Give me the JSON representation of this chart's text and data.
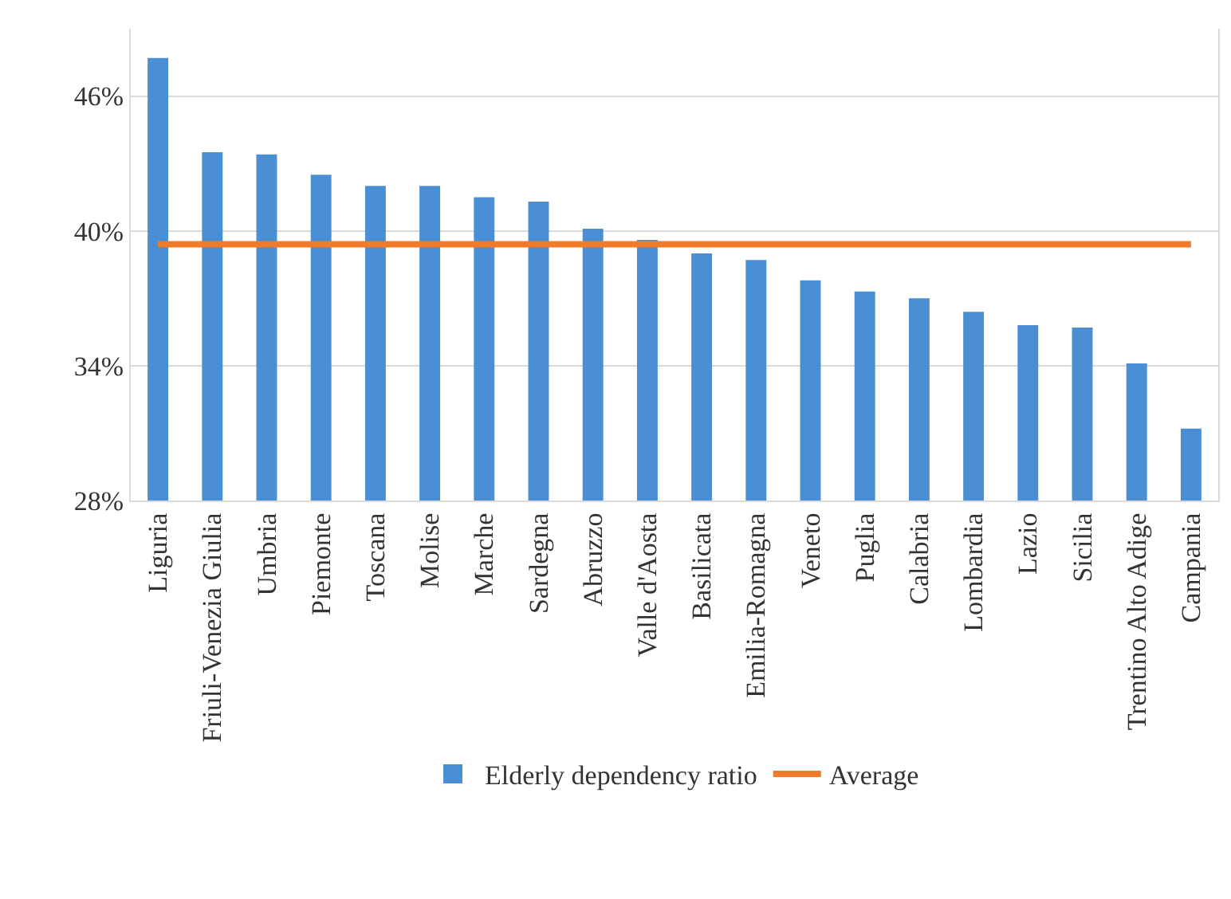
{
  "chart_data": {
    "type": "bar",
    "categories": [
      "Liguria",
      "Friuli-Venezia Giulia",
      "Umbria",
      "Piemonte",
      "Toscana",
      "Molise",
      "Marche",
      "Sardegna",
      "Abruzzo",
      "Valle d'Aosta",
      "Basilicata",
      "Emilia-Romagna",
      "Veneto",
      "Puglia",
      "Calabria",
      "Lombardia",
      "Lazio",
      "Sicilia",
      "Trentino Alto Adige",
      "Campania"
    ],
    "series": [
      {
        "name": "Elderly dependency ratio",
        "color": "#4a8fd4",
        "values": [
          47.7,
          43.5,
          43.4,
          42.5,
          42.0,
          42.0,
          41.5,
          41.3,
          40.1,
          39.6,
          39.0,
          38.7,
          37.8,
          37.3,
          37.0,
          36.4,
          35.8,
          35.7,
          34.1,
          31.2
        ]
      },
      {
        "name": "Average",
        "type": "line",
        "color": "#f07b2a",
        "values": [
          39.4,
          39.4,
          39.4,
          39.4,
          39.4,
          39.4,
          39.4,
          39.4,
          39.4,
          39.4,
          39.4,
          39.4,
          39.4,
          39.4,
          39.4,
          39.4,
          39.4,
          39.4,
          39.4,
          39.4
        ]
      }
    ],
    "ylim": [
      28,
      49
    ],
    "yticks": [
      {
        "value": 28,
        "label": "28%"
      },
      {
        "value": 34,
        "label": "34%"
      },
      {
        "value": 40,
        "label": "40%"
      },
      {
        "value": 46,
        "label": "46%"
      }
    ],
    "grid": "y",
    "legend": "bottom",
    "marker": "none",
    "line_style": "solid"
  }
}
